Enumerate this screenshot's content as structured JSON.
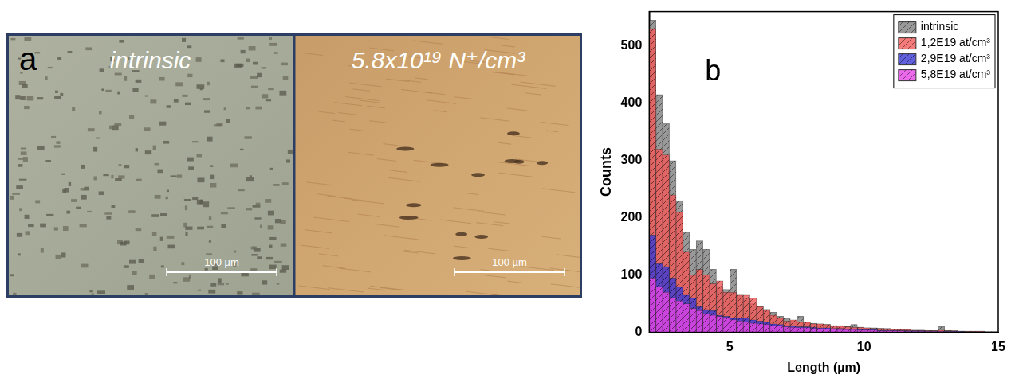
{
  "panel_a": {
    "label": "a",
    "images": [
      {
        "title": "intrinsic",
        "scale_bar": "100 µm"
      },
      {
        "title": "5.8x10¹⁹ N⁺/cm³",
        "scale_bar": "100 µm"
      }
    ]
  },
  "chart_data": {
    "type": "histogram",
    "panel_label": "b",
    "x_label": "Length (µm)",
    "y_label": "Counts",
    "bins": [
      2,
      2.25,
      2.5,
      2.75,
      3,
      3.25,
      3.5,
      3.75,
      4,
      4.25,
      4.5,
      4.75,
      5,
      5.25,
      5.5,
      5.75,
      6,
      6.25,
      6.5,
      6.75,
      7,
      7.25,
      7.5,
      7.75,
      8,
      8.25,
      8.5,
      8.75,
      9,
      9.25,
      9.5,
      9.75,
      10,
      10.25,
      10.5,
      10.75,
      11,
      11.25,
      11.5,
      11.75,
      12,
      12.25,
      12.5,
      12.75,
      13,
      13.25,
      13.5,
      13.75,
      14,
      14.25,
      14.5,
      14.75,
      15
    ],
    "series": [
      {
        "name": "intrinsic",
        "color": "#7f7f7f",
        "values": [
          545,
          415,
          365,
          300,
          230,
          175,
          145,
          160,
          145,
          110,
          80,
          75,
          110,
          65,
          60,
          50,
          45,
          40,
          35,
          28,
          25,
          20,
          28,
          18,
          16,
          15,
          14,
          12,
          12,
          10,
          14,
          9,
          8,
          8,
          7,
          7,
          6,
          5,
          5,
          4,
          4,
          3,
          3,
          10,
          3,
          2,
          2,
          2,
          2,
          2,
          1,
          1
        ]
      },
      {
        "name": "1,2E19 at/cm³",
        "color": "#f25a5a",
        "values": [
          530,
          320,
          310,
          240,
          210,
          140,
          100,
          110,
          100,
          85,
          90,
          70,
          70,
          65,
          65,
          60,
          45,
          40,
          30,
          25,
          20,
          22,
          18,
          18,
          15,
          15,
          14,
          12,
          11,
          10,
          9,
          9,
          8,
          7,
          7,
          6,
          6,
          5,
          5,
          4,
          4,
          3,
          3,
          4,
          3,
          3,
          2,
          2,
          2,
          2,
          1,
          1
        ]
      },
      {
        "name": "2,9E19 at/cm³",
        "color": "#3a3ad6",
        "values": [
          170,
          120,
          115,
          95,
          80,
          65,
          60,
          45,
          40,
          38,
          30,
          28,
          25,
          25,
          25,
          22,
          20,
          18,
          15,
          14,
          12,
          12,
          10,
          10,
          9,
          8,
          8,
          7,
          7,
          6,
          6,
          5,
          5,
          5,
          4,
          4,
          4,
          3,
          3,
          3,
          3,
          2,
          2,
          2,
          2,
          2,
          2,
          1,
          1,
          1,
          1,
          1
        ]
      },
      {
        "name": "5,8E19 at/cm³",
        "color": "#e645e6",
        "values": [
          95,
          80,
          70,
          60,
          55,
          50,
          42,
          38,
          32,
          30,
          28,
          25,
          22,
          20,
          18,
          16,
          15,
          14,
          12,
          11,
          10,
          9,
          8,
          8,
          7,
          7,
          6,
          6,
          5,
          5,
          5,
          4,
          4,
          4,
          3,
          3,
          3,
          3,
          2,
          2,
          2,
          2,
          2,
          2,
          1,
          1,
          1,
          1,
          1,
          1,
          1,
          1
        ]
      }
    ],
    "xlim": [
      2,
      15
    ],
    "xticks": [
      5,
      10,
      15
    ],
    "ylim": [
      0,
      560
    ],
    "yticks": [
      0,
      100,
      200,
      300,
      400,
      500
    ],
    "grid": false,
    "legend": "upper right"
  }
}
